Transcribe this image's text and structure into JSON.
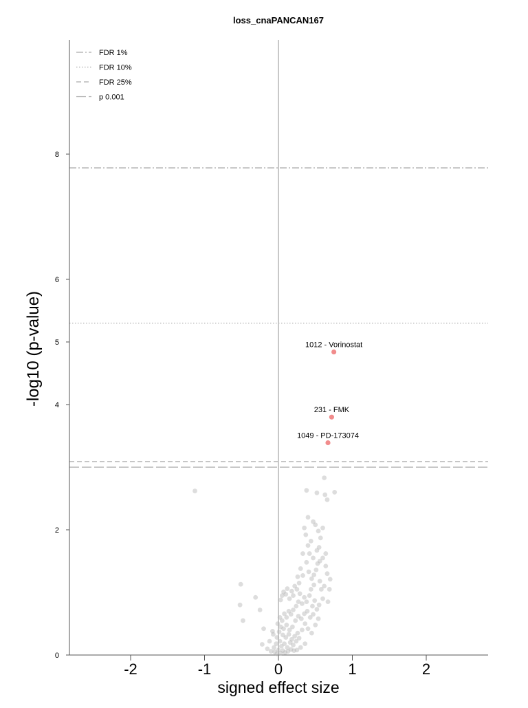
{
  "chart_data": {
    "type": "scatter",
    "title": "loss_cnaPANCAN167",
    "xlabel": "signed effect size",
    "ylabel": "-log10 (p-value)",
    "xlim": [
      -2.85,
      2.85
    ],
    "ylim": [
      0,
      9.75
    ],
    "xticks": [
      -2,
      -1,
      0,
      1,
      2
    ],
    "yticks": [
      0,
      2,
      4,
      5,
      6,
      8
    ],
    "grid": false,
    "legend_position": "top-left",
    "legend": [
      {
        "label": "FDR 1%",
        "style": "dashdot",
        "color": "#aaaaaa"
      },
      {
        "label": "FDR 10%",
        "style": "dotted",
        "color": "#aaaaaa"
      },
      {
        "label": "FDR 25%",
        "style": "dashed",
        "color": "#aaaaaa"
      },
      {
        "label": "p 0.001",
        "style": "longdash",
        "color": "#aaaaaa"
      }
    ],
    "threshold_lines": [
      {
        "name": "FDR 1%",
        "y": 7.78,
        "style": "dashdot"
      },
      {
        "name": "FDR 10%",
        "y": 5.3,
        "style": "dotted"
      },
      {
        "name": "FDR 25%",
        "y": 3.09,
        "style": "dashed"
      },
      {
        "name": "p 0.001",
        "y": 3.0,
        "style": "longdash"
      }
    ],
    "highlight_color": "#f08080",
    "background_color": "#b3b3b3",
    "highlighted_points": [
      {
        "label": "1012 - Vorinostat",
        "x": 0.75,
        "y": 4.84
      },
      {
        "label": "231 - FMK",
        "x": 0.72,
        "y": 3.8
      },
      {
        "label": "1049 - PD-173074",
        "x": 0.67,
        "y": 3.39
      }
    ],
    "background_points": [
      [
        -1.13,
        2.62
      ],
      [
        -0.51,
        1.13
      ],
      [
        -0.52,
        0.8
      ],
      [
        -0.48,
        0.55
      ],
      [
        -0.31,
        0.92
      ],
      [
        -0.25,
        0.72
      ],
      [
        -0.2,
        0.42
      ],
      [
        -0.22,
        0.17
      ],
      [
        -0.12,
        0.22
      ],
      [
        -0.08,
        0.38
      ],
      [
        -0.05,
        0.05
      ],
      [
        -0.02,
        0.28
      ],
      [
        0.38,
        2.63
      ],
      [
        0.52,
        2.59
      ],
      [
        0.63,
        2.56
      ],
      [
        0.66,
        2.48
      ],
      [
        0.76,
        2.6
      ],
      [
        0.62,
        2.83
      ],
      [
        0.4,
        2.2
      ],
      [
        0.47,
        2.13
      ],
      [
        0.5,
        2.08
      ],
      [
        0.54,
        1.98
      ],
      [
        0.57,
        1.87
      ],
      [
        0.6,
        2.03
      ],
      [
        0.35,
        2.03
      ],
      [
        0.37,
        1.92
      ],
      [
        0.44,
        1.82
      ],
      [
        0.42,
        1.62
      ],
      [
        0.52,
        1.67
      ],
      [
        0.55,
        1.72
      ],
      [
        0.6,
        1.55
      ],
      [
        0.64,
        1.42
      ],
      [
        0.66,
        1.3
      ],
      [
        0.7,
        1.21
      ],
      [
        0.62,
        1.1
      ],
      [
        0.58,
        1.05
      ],
      [
        0.3,
        1.38
      ],
      [
        0.33,
        1.27
      ],
      [
        0.38,
        1.48
      ],
      [
        0.41,
        1.33
      ],
      [
        0.45,
        1.22
      ],
      [
        0.48,
        1.28
      ],
      [
        0.51,
        1.36
      ],
      [
        0.53,
        1.46
      ],
      [
        0.28,
        1.15
      ],
      [
        0.25,
        1.05
      ],
      [
        0.22,
        1.1
      ],
      [
        0.18,
        1.02
      ],
      [
        0.12,
        1.06
      ],
      [
        0.1,
        0.97
      ],
      [
        0.07,
        1.01
      ],
      [
        0.05,
        0.95
      ],
      [
        0.03,
        0.88
      ],
      [
        0.15,
        0.9
      ],
      [
        0.2,
        0.95
      ],
      [
        0.27,
        0.85
      ],
      [
        0.32,
        0.82
      ],
      [
        0.35,
        0.92
      ],
      [
        0.38,
        0.85
      ],
      [
        0.42,
        0.95
      ],
      [
        0.46,
        0.78
      ],
      [
        0.49,
        0.87
      ],
      [
        0.52,
        0.73
      ],
      [
        0.55,
        0.8
      ],
      [
        0.24,
        0.78
      ],
      [
        0.2,
        0.72
      ],
      [
        0.17,
        0.65
      ],
      [
        0.14,
        0.7
      ],
      [
        0.11,
        0.6
      ],
      [
        0.08,
        0.66
      ],
      [
        0.05,
        0.55
      ],
      [
        0.02,
        0.6
      ],
      [
        -0.01,
        0.5
      ],
      [
        0.03,
        0.45
      ],
      [
        0.07,
        0.42
      ],
      [
        0.11,
        0.48
      ],
      [
        0.15,
        0.4
      ],
      [
        0.19,
        0.45
      ],
      [
        0.23,
        0.55
      ],
      [
        0.27,
        0.62
      ],
      [
        0.31,
        0.58
      ],
      [
        0.35,
        0.66
      ],
      [
        0.39,
        0.7
      ],
      [
        0.43,
        0.6
      ],
      [
        0.47,
        0.65
      ],
      [
        0.26,
        0.35
      ],
      [
        0.22,
        0.3
      ],
      [
        0.18,
        0.25
      ],
      [
        0.14,
        0.33
      ],
      [
        0.1,
        0.28
      ],
      [
        0.06,
        0.32
      ],
      [
        0.02,
        0.22
      ],
      [
        -0.03,
        0.18
      ],
      [
        0.04,
        0.14
      ],
      [
        0.08,
        0.18
      ],
      [
        0.12,
        0.12
      ],
      [
        0.16,
        0.2
      ],
      [
        0.2,
        0.16
      ],
      [
        0.24,
        0.22
      ],
      [
        0.28,
        0.27
      ],
      [
        0.32,
        0.4
      ],
      [
        0.36,
        0.5
      ],
      [
        0.4,
        0.42
      ],
      [
        0.0,
        0.08
      ],
      [
        0.03,
        0.03
      ],
      [
        -0.06,
        0.12
      ],
      [
        -0.1,
        0.06
      ],
      [
        0.06,
        0.07
      ],
      [
        0.09,
        0.04
      ],
      [
        0.13,
        0.06
      ],
      [
        0.17,
        0.09
      ],
      [
        0.21,
        0.07
      ],
      [
        -0.15,
        0.1
      ],
      [
        -0.02,
        0.02
      ],
      [
        0.44,
        1.05
      ],
      [
        0.48,
        1.12
      ],
      [
        0.56,
        1.18
      ],
      [
        0.6,
        0.9
      ],
      [
        0.33,
        1.62
      ],
      [
        0.47,
        1.55
      ],
      [
        0.56,
        1.5
      ],
      [
        0.29,
        0.98
      ],
      [
        0.26,
        1.25
      ],
      [
        0.4,
        1.75
      ],
      [
        0.64,
        1.62
      ],
      [
        0.69,
        1.05
      ],
      [
        0.67,
        0.85
      ],
      [
        0.36,
        0.18
      ],
      [
        0.3,
        0.12
      ],
      [
        0.25,
        0.08
      ],
      [
        -0.07,
        0.33
      ],
      [
        0.01,
        0.37
      ],
      [
        0.45,
        0.35
      ],
      [
        0.5,
        0.48
      ],
      [
        0.54,
        0.58
      ]
    ]
  }
}
